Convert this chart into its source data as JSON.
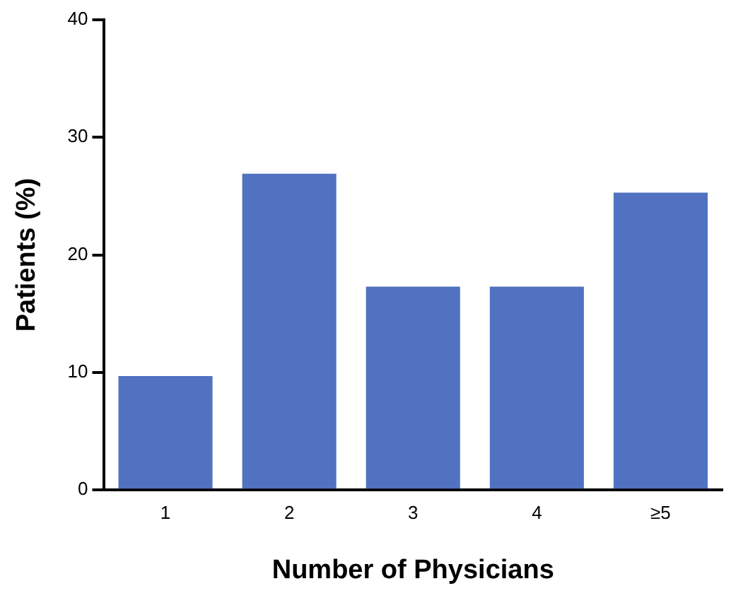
{
  "chart_data": {
    "type": "bar",
    "xlabel": "Number of Physicians",
    "ylabel": "Patients (%)",
    "categories": [
      "1",
      "2",
      "3",
      "4",
      "≥5"
    ],
    "values": [
      9.7,
      26.9,
      17.3,
      17.3,
      25.3
    ],
    "color": "#5172c0",
    "ylim": [
      0,
      40
    ],
    "yticks": [
      0,
      10,
      20,
      30,
      40
    ],
    "grid": false,
    "legend": false
  }
}
